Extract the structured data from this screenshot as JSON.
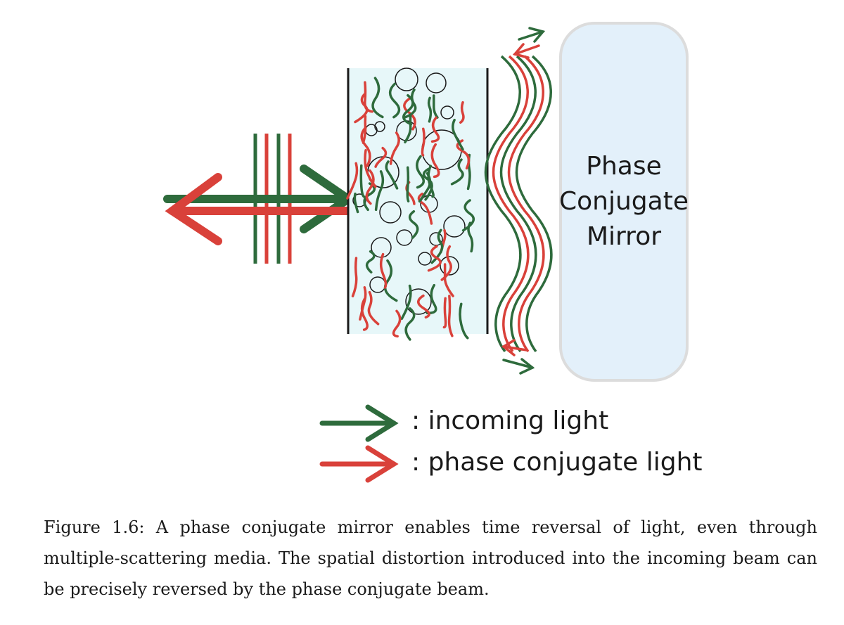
{
  "mirror": {
    "line1": "Phase",
    "line2": "Conjugate",
    "line3": "Mirror"
  },
  "legend": {
    "incoming": ": incoming light",
    "conjugate": ": phase conjugate light"
  },
  "caption": "Figure 1.6: A phase conjugate mirror enables time reversal of light, even through multiple-scattering media. The spatial distortion introduced into the incoming beam can be precisely reversed by the phase conjugate beam.",
  "colors": {
    "incoming": "#2e6b3c",
    "conjugate": "#d9413a",
    "medium_fill": "#e7f7f9",
    "mirror_fill": "#e3f0fa",
    "mirror_stroke": "#dcdcdc"
  }
}
